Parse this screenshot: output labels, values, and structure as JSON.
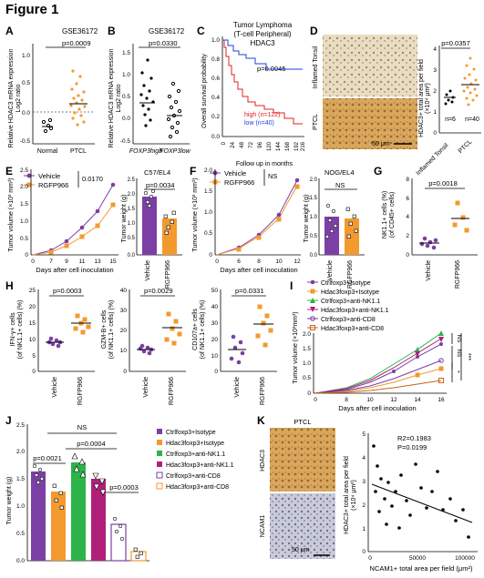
{
  "figure_title": "Figure 1",
  "colors": {
    "purple": "#7b3fa6",
    "orange": "#f29a2e",
    "red": "#e02020",
    "blue": "#1f3fe0",
    "green": "#2db34a",
    "magenta": "#b0207a",
    "darkorange": "#c8641a"
  },
  "panels": {
    "A": {
      "letter": "A",
      "dataset": "GSE36172",
      "pvalue": "p=0.0009",
      "ylabel_1": "Relative HDAC3 mRNA expression",
      "ylabel_2": "Log2 ratio",
      "ticks": [
        "1.0",
        "0.5",
        "0.0",
        "-0.5"
      ],
      "groups": [
        "Normal",
        "PTCL"
      ]
    },
    "B": {
      "letter": "B",
      "dataset": "GSE36172",
      "pvalue": "p=0.0330",
      "ylabel_1": "Relative HDAC3 mRNA expression",
      "ylabel_2": "Log2 ratio",
      "ticks": [
        "1.5",
        "1.0",
        "0.5",
        "0.0",
        "-0.5"
      ],
      "groups": [
        "FOXP3high",
        "FOXP3low"
      ]
    },
    "C": {
      "letter": "C",
      "title_1": "Tumor Lymphoma",
      "title_2": "(T-cell Peripheral)",
      "title_3": "HDAC3",
      "pvalue": "p=0.0045",
      "ylabel": "Overall survival probability",
      "xlabel": "Follow up in months",
      "yticks": [
        "1.0",
        "0.8",
        "0.6",
        "0.4",
        "0.2",
        "0.0"
      ],
      "xticks": [
        "0",
        "24",
        "48",
        "72",
        "96",
        "120",
        "144",
        "168",
        "192",
        "216"
      ],
      "legend_high": "high (n=122)",
      "legend_low": "low (n=40)"
    },
    "D": {
      "letter": "D",
      "label_top": "Inflamed Tonsil",
      "label_bottom": "PTCL",
      "scale": "50 μm",
      "pvalue": "p=0.0357",
      "ylabel_1": "HDAC3+ total area per field",
      "ylabel_2": "(×10⁴ μm²)",
      "ticks": [
        "4",
        "3",
        "2",
        "1",
        "0"
      ],
      "groups": [
        "Inflamed Tonsil",
        "PTCL"
      ],
      "n1": "n=6",
      "n2": "n=40"
    },
    "E": {
      "letter": "E",
      "legend": [
        "Vehicle",
        "RGFP966"
      ],
      "pvalue_curve": "0.0170",
      "ylabel": "Tumor volume (×10³ mm³)",
      "xlabel": "Days after cell inoculation",
      "xticks": [
        "0",
        "7",
        "9",
        "11",
        "13",
        "15"
      ],
      "yticks": [
        "2.5",
        "2.0",
        "1.5",
        "1.0",
        "0.5",
        "0"
      ],
      "bar_title": "C57/EL4",
      "bar_p": "p=0.0034",
      "bar_ylabel": "Tumor weight (g)",
      "bar_ticks": [
        "2.5",
        "2.0",
        "1.5",
        "1.0",
        "0.5",
        "0.0"
      ],
      "groups": [
        "Vehicle",
        "RGFP966"
      ]
    },
    "F": {
      "letter": "F",
      "legend": [
        "Vehicle",
        "RGFP966"
      ],
      "ns_curve": "NS",
      "ylabel": "Tumor volume (×10³ mm³)",
      "xlabel": "Days after cell inoculation",
      "xticks": [
        "0",
        "6",
        "8",
        "10",
        "12"
      ],
      "yticks": [
        "2.0",
        "1.5",
        "1.0",
        "0.5",
        "0"
      ],
      "bar_title": "NOG/EL4",
      "bar_ns": "NS",
      "bar_ylabel": "Tumor weight (g)",
      "bar_ticks": [
        "2.0",
        "1.5",
        "1.0",
        "0.5",
        "0.0"
      ],
      "groups": [
        "Vehicle",
        "RGFP966"
      ]
    },
    "G": {
      "letter": "G",
      "pvalue": "p=0.0018",
      "ylabel_1": "NK1.1+ cells (%)",
      "ylabel_2": "(of CD45+ cells)",
      "ticks": [
        "8",
        "6",
        "4",
        "2",
        "0"
      ],
      "groups": [
        "Vehicle",
        "RGFP966"
      ]
    },
    "H": {
      "letter": "H",
      "p1": "p=0.0003",
      "p2": "p=0.0029",
      "p3": "p=0.0331",
      "yl1a": "IFN-γ+ cells",
      "yl1b": "(of NK1.1+ cells) (%)",
      "yl2a": "GZM-B+ cells",
      "yl2b": "(of NK1.1+ cells) (%)",
      "yl3a": "CD107a+ cells",
      "yl3b": "(of NK1.1+ cells) (%)",
      "t1": [
        "25",
        "20",
        "15",
        "10",
        "5",
        "0"
      ],
      "t2": [
        "40",
        "30",
        "20",
        "10",
        "0"
      ],
      "t3": [
        "50",
        "40",
        "30",
        "20",
        "10",
        "0"
      ],
      "groups": [
        "Vehicle",
        "RGFP966"
      ]
    },
    "I": {
      "letter": "I",
      "legend": [
        "Ctrlfoxp3+Isotype",
        "Hdac3foxp3+Isotype",
        "Ctrlfoxp3+anti-NK1.1",
        "Hdac3foxp3+anti-NK1.1",
        "Ctrlfoxp3+anti-CD8",
        "Hdac3foxp3+anti-CD8"
      ],
      "ylabel": "Tumor volume (×10³mm³)",
      "xlabel": "Days after cell inoculation",
      "xticks": [
        "0",
        "8",
        "10",
        "12",
        "14",
        "16"
      ],
      "yticks": [
        "2.0",
        "1.5",
        "1.0",
        "0.5",
        "0"
      ],
      "sig": [
        "NS",
        "NS",
        "***",
        "*"
      ]
    },
    "J": {
      "letter": "J",
      "ns": "NS",
      "p1": "p=0.0004",
      "p2": "p=0.0021",
      "p3": "p=0.0003",
      "ylabel": "Tumor weight (g)",
      "ticks": [
        "2.5",
        "2.0",
        "1.5",
        "1.0",
        "0.5",
        "0.0"
      ],
      "legend": [
        "Ctrlfoxp3+Isotype",
        "Hdac3foxp3+Isotype",
        "Ctrlfoxp3+anti-NK1.1",
        "Hdac3foxp3+anti-NK1.1",
        "Ctrlfoxp3+anti-CD8",
        "Hdac3foxp3+anti-CD8"
      ]
    },
    "K": {
      "letter": "K",
      "title": "PTCL",
      "label_top": "HDAC3",
      "label_bottom": "NCAM1",
      "scale": "50 μm",
      "r2": "R2=0.1983",
      "p": "P=0.0199",
      "ylabel_1": "HDAC3+ total area per field",
      "ylabel_2": "(×10⁴ μm²)",
      "xlabel": "NCAM1+ total area per field (μm²)",
      "xticks": [
        "0",
        "50000",
        "100000"
      ],
      "yticks": [
        "5",
        "4",
        "3",
        "2",
        "1",
        "0"
      ]
    }
  }
}
